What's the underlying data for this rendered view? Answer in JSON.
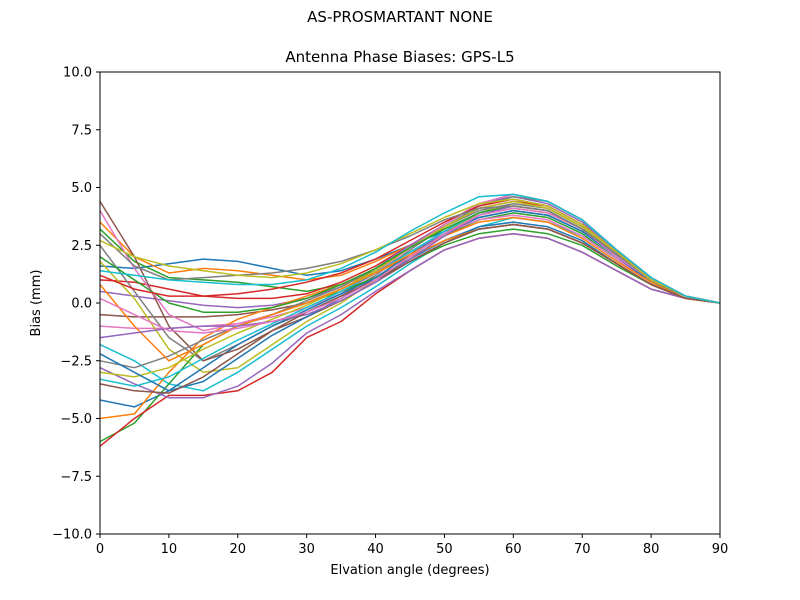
{
  "figure": {
    "suptitle": "AS-PROSMARTANT  NONE"
  },
  "chart_data": {
    "type": "line",
    "title": "Antenna Phase Biases: GPS-L5",
    "xlabel": "Elvation angle (degrees)",
    "ylabel": "Bias (mm)",
    "xlim": [
      0,
      90
    ],
    "ylim": [
      -10,
      10
    ],
    "xticks": [
      0,
      10,
      20,
      30,
      40,
      50,
      60,
      70,
      80,
      90
    ],
    "yticks": [
      -10.0,
      -7.5,
      -5.0,
      -2.5,
      0.0,
      2.5,
      5.0,
      7.5,
      10.0
    ],
    "ytick_labels": [
      "−10.0",
      "−7.5",
      "−5.0",
      "−2.5",
      "0.0",
      "2.5",
      "5.0",
      "7.5",
      "10.0"
    ],
    "grid": false,
    "legend": false,
    "x": [
      0,
      5,
      10,
      15,
      20,
      25,
      30,
      35,
      40,
      45,
      50,
      55,
      60,
      65,
      70,
      75,
      80,
      85,
      90
    ],
    "series_colors": [
      "#1f77b4",
      "#ff7f0e",
      "#2ca02c",
      "#d62728",
      "#9467bd",
      "#8c564b",
      "#e377c2",
      "#7f7f7f",
      "#bcbd22",
      "#17becf"
    ],
    "series": [
      {
        "values": [
          1.6,
          1.5,
          1.7,
          1.9,
          1.8,
          1.5,
          1.2,
          1.4,
          1.9,
          2.5,
          3.1,
          3.7,
          4.0,
          3.8,
          3.1,
          2.0,
          1.0,
          0.3,
          0.0
        ]
      },
      {
        "values": [
          3.5,
          2.0,
          1.3,
          1.5,
          1.4,
          1.2,
          1.0,
          1.2,
          1.8,
          2.5,
          3.2,
          3.8,
          4.1,
          3.9,
          3.2,
          2.1,
          1.0,
          0.3,
          0.0
        ]
      },
      {
        "values": [
          3.2,
          1.8,
          1.1,
          1.0,
          0.9,
          0.7,
          0.5,
          0.8,
          1.4,
          2.2,
          2.9,
          3.6,
          3.9,
          3.7,
          3.0,
          1.9,
          0.9,
          0.3,
          0.0
        ]
      },
      {
        "values": [
          1.0,
          0.9,
          0.6,
          0.3,
          0.2,
          0.2,
          0.4,
          0.9,
          1.6,
          2.5,
          3.3,
          4.1,
          4.4,
          4.2,
          3.4,
          2.2,
          1.0,
          0.3,
          0.0
        ]
      },
      {
        "values": [
          0.5,
          0.3,
          0.1,
          -0.1,
          -0.2,
          -0.1,
          0.2,
          0.7,
          1.5,
          2.5,
          3.4,
          4.3,
          4.6,
          4.3,
          3.5,
          2.2,
          1.0,
          0.3,
          0.0
        ]
      },
      {
        "values": [
          -0.5,
          -0.6,
          -0.6,
          -0.6,
          -0.5,
          -0.3,
          0.0,
          0.6,
          1.4,
          2.4,
          3.4,
          4.3,
          4.7,
          4.4,
          3.6,
          2.3,
          1.1,
          0.3,
          0.0
        ]
      },
      {
        "values": [
          -1.0,
          -1.1,
          -1.1,
          -1.0,
          -0.9,
          -0.6,
          -0.2,
          0.4,
          1.3,
          2.4,
          3.4,
          4.3,
          4.7,
          4.4,
          3.6,
          2.3,
          1.1,
          0.3,
          0.0
        ]
      },
      {
        "values": [
          2.5,
          0.5,
          -1.5,
          -2.5,
          -1.8,
          -1.0,
          -0.4,
          0.3,
          1.2,
          2.3,
          3.3,
          4.2,
          4.6,
          4.4,
          3.6,
          2.3,
          1.1,
          0.3,
          0.0
        ]
      },
      {
        "values": [
          1.8,
          0.2,
          -2.0,
          -3.0,
          -2.8,
          -1.8,
          -0.8,
          0.0,
          1.0,
          2.0,
          3.0,
          3.9,
          4.3,
          4.1,
          3.3,
          2.1,
          1.0,
          0.3,
          0.0
        ]
      },
      {
        "values": [
          -1.8,
          -2.5,
          -3.5,
          -3.8,
          -3.0,
          -2.0,
          -1.0,
          -0.2,
          0.7,
          1.7,
          2.6,
          3.3,
          3.7,
          3.5,
          2.9,
          1.9,
          0.9,
          0.3,
          0.0
        ]
      },
      {
        "values": [
          -4.2,
          -4.5,
          -3.8,
          -2.8,
          -1.8,
          -1.0,
          -0.3,
          0.4,
          1.1,
          1.9,
          2.7,
          3.3,
          3.5,
          3.3,
          2.7,
          1.7,
          0.8,
          0.2,
          0.0
        ]
      },
      {
        "values": [
          -5.0,
          -4.8,
          -3.0,
          -1.5,
          -0.7,
          -0.2,
          0.3,
          0.8,
          1.3,
          2.0,
          2.7,
          3.2,
          3.4,
          3.2,
          2.6,
          1.7,
          0.8,
          0.2,
          0.0
        ]
      },
      {
        "values": [
          -6.0,
          -5.2,
          -3.5,
          -1.8,
          -1.0,
          -0.5,
          0.0,
          0.5,
          1.1,
          1.8,
          2.5,
          3.0,
          3.2,
          3.0,
          2.5,
          1.6,
          0.8,
          0.2,
          0.0
        ]
      },
      {
        "values": [
          -6.2,
          -5.0,
          -4.0,
          -4.0,
          -3.8,
          -3.0,
          -1.5,
          -0.8,
          0.4,
          1.4,
          2.3,
          2.8,
          3.0,
          2.8,
          2.2,
          1.4,
          0.6,
          0.2,
          0.0
        ]
      },
      {
        "values": [
          -2.8,
          -3.5,
          -4.1,
          -4.1,
          -3.6,
          -2.6,
          -1.3,
          -0.5,
          0.5,
          1.4,
          2.3,
          2.8,
          3.0,
          2.8,
          2.2,
          1.4,
          0.6,
          0.2,
          0.0
        ]
      },
      {
        "values": [
          4.4,
          2.0,
          -1.0,
          -2.5,
          -2.0,
          -1.2,
          -0.6,
          0.1,
          0.9,
          1.8,
          2.6,
          3.2,
          3.4,
          3.2,
          2.6,
          1.7,
          0.8,
          0.2,
          0.0
        ]
      },
      {
        "values": [
          4.0,
          1.5,
          -0.5,
          -1.2,
          -0.9,
          -0.5,
          0.0,
          0.6,
          1.3,
          2.2,
          3.0,
          3.6,
          3.8,
          3.6,
          2.9,
          1.9,
          0.9,
          0.3,
          0.0
        ]
      },
      {
        "values": [
          -2.5,
          -2.8,
          -2.3,
          -1.6,
          -1.0,
          -0.5,
          0.1,
          0.7,
          1.5,
          2.4,
          3.3,
          4.0,
          4.3,
          4.1,
          3.3,
          2.1,
          1.0,
          0.3,
          0.0
        ]
      },
      {
        "values": [
          -3.0,
          -3.2,
          -2.8,
          -2.0,
          -1.3,
          -0.7,
          -0.1,
          0.6,
          1.4,
          2.4,
          3.3,
          4.1,
          4.4,
          4.1,
          3.3,
          2.1,
          1.0,
          0.3,
          0.0
        ]
      },
      {
        "values": [
          -3.3,
          -3.6,
          -3.2,
          -2.4,
          -1.6,
          -0.9,
          -0.2,
          0.5,
          1.3,
          2.2,
          3.1,
          3.9,
          4.2,
          4.0,
          3.2,
          2.1,
          1.0,
          0.3,
          0.0
        ]
      },
      {
        "values": [
          -2.2,
          -3.0,
          -3.8,
          -3.4,
          -2.4,
          -1.4,
          -0.6,
          0.2,
          1.1,
          2.1,
          3.0,
          3.7,
          4.0,
          3.8,
          3.1,
          2.0,
          0.9,
          0.3,
          0.0
        ]
      },
      {
        "values": [
          0.8,
          -1.0,
          -2.5,
          -1.8,
          -1.0,
          -0.5,
          0.0,
          0.6,
          1.3,
          2.1,
          2.9,
          3.5,
          3.7,
          3.5,
          2.8,
          1.8,
          0.9,
          0.2,
          0.0
        ]
      },
      {
        "values": [
          2.0,
          1.0,
          0.0,
          -0.4,
          -0.4,
          -0.2,
          0.2,
          0.8,
          1.5,
          2.4,
          3.2,
          3.9,
          4.2,
          4.0,
          3.2,
          2.1,
          1.0,
          0.3,
          0.0
        ]
      },
      {
        "values": [
          1.2,
          0.6,
          0.3,
          0.3,
          0.4,
          0.6,
          0.9,
          1.3,
          1.9,
          2.7,
          3.5,
          4.2,
          4.5,
          4.2,
          3.4,
          2.2,
          1.0,
          0.3,
          0.0
        ]
      },
      {
        "values": [
          -1.5,
          -1.3,
          -1.1,
          -1.0,
          -1.0,
          -0.8,
          -0.5,
          0.1,
          0.9,
          1.9,
          2.9,
          3.8,
          4.2,
          4.0,
          3.2,
          2.1,
          1.0,
          0.3,
          0.0
        ]
      },
      {
        "values": [
          -3.5,
          -3.8,
          -3.9,
          -3.2,
          -2.2,
          -1.2,
          -0.4,
          0.3,
          1.0,
          1.8,
          2.6,
          3.2,
          3.4,
          3.2,
          2.6,
          1.7,
          0.8,
          0.2,
          0.0
        ]
      },
      {
        "values": [
          0.2,
          -0.5,
          -1.2,
          -1.3,
          -1.1,
          -0.8,
          -0.4,
          0.2,
          1.0,
          2.0,
          3.0,
          3.8,
          4.1,
          3.9,
          3.2,
          2.0,
          1.0,
          0.3,
          0.0
        ]
      },
      {
        "values": [
          3.0,
          1.6,
          1.0,
          1.1,
          1.2,
          1.3,
          1.5,
          1.8,
          2.3,
          2.9,
          3.6,
          4.1,
          4.2,
          4.0,
          3.2,
          2.1,
          1.0,
          0.3,
          0.0
        ]
      },
      {
        "values": [
          2.7,
          2.0,
          1.6,
          1.4,
          1.2,
          1.1,
          1.3,
          1.7,
          2.3,
          3.0,
          3.7,
          4.3,
          4.5,
          4.2,
          3.4,
          2.2,
          1.0,
          0.3,
          0.0
        ]
      },
      {
        "values": [
          1.4,
          1.2,
          1.0,
          0.9,
          0.8,
          0.8,
          1.0,
          1.5,
          2.2,
          3.1,
          3.9,
          4.6,
          4.7,
          4.4,
          3.6,
          2.3,
          1.1,
          0.3,
          0.0
        ]
      }
    ]
  }
}
